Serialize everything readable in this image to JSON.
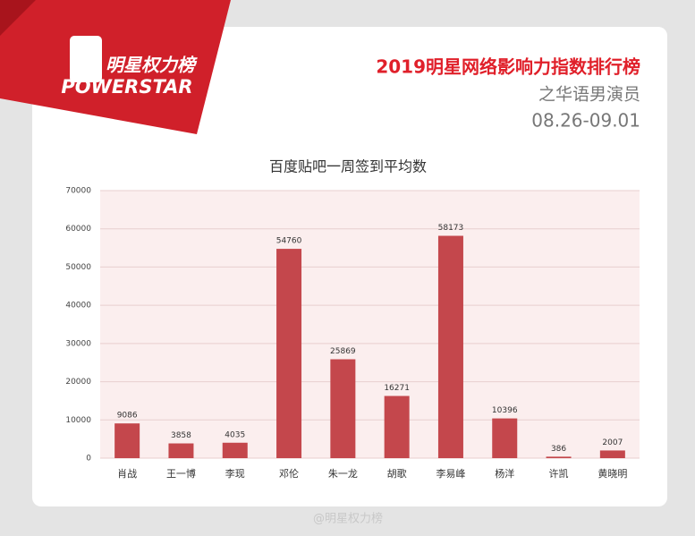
{
  "header": {
    "logo": "明星权力榜",
    "brand": "POWERSTAR",
    "title": "2019明星网络影响力指数排行榜",
    "subtitle": "之华语男演员",
    "date": "08.26-09.01",
    "watermark": "@明星权力榜"
  },
  "chart_data": {
    "type": "bar",
    "title": "百度贴吧一周签到平均数",
    "categories": [
      "肖战",
      "王一博",
      "李现",
      "邓伦",
      "朱一龙",
      "胡歌",
      "李易峰",
      "杨洋",
      "许凯",
      "黄晓明"
    ],
    "values": [
      9086,
      3858,
      4035,
      54760,
      25869,
      16271,
      58173,
      10396,
      386,
      2007
    ],
    "color": "#c4474c",
    "ylim": [
      0,
      70000
    ],
    "yticks": [
      0,
      10000,
      20000,
      30000,
      40000,
      50000,
      60000,
      70000
    ],
    "grid": true
  }
}
